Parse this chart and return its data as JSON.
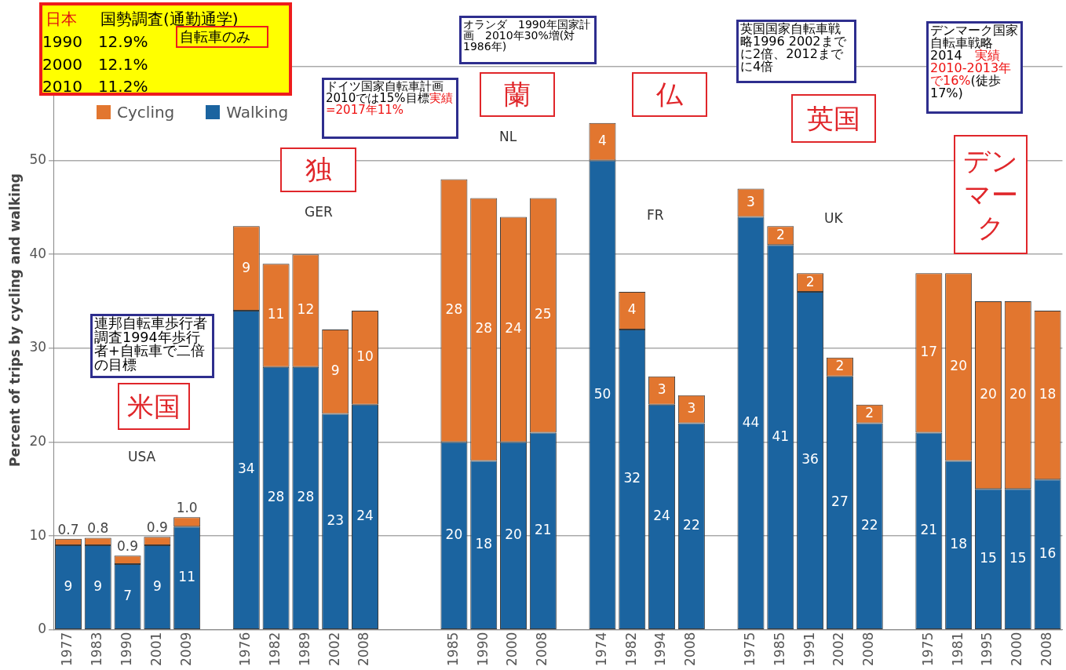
{
  "chart_data": {
    "type": "bar",
    "stacked": true,
    "ylabel": "Percent of trips by cycling and walking",
    "categories": [
      "1977",
      "1983",
      "1990",
      "2001",
      "2009",
      null,
      "1976",
      "1982",
      "1989",
      "2002",
      "2008",
      null,
      null,
      "1985",
      "1990",
      "2000",
      "2008",
      null,
      "1974",
      "1982",
      "1994",
      "2008",
      null,
      "1975",
      "1985",
      "1991",
      "2002",
      "2008",
      null,
      "1975",
      "1981",
      "1995",
      "2000",
      "2008"
    ],
    "series": [
      {
        "name": "Walking",
        "color": "#1b64a0",
        "values": [
          9,
          9,
          7,
          9,
          11,
          null,
          34,
          28,
          28,
          23,
          24,
          null,
          null,
          20,
          18,
          20,
          21,
          null,
          50,
          32,
          24,
          22,
          null,
          44,
          41,
          36,
          27,
          22,
          null,
          21,
          18,
          15,
          15,
          16
        ],
        "value_labels": [
          "9",
          "9",
          "7",
          "9",
          "11",
          null,
          "34",
          "28",
          "28",
          "23",
          "24",
          null,
          null,
          "20",
          "18",
          "20",
          "21",
          null,
          "50",
          "32",
          "24",
          "22",
          null,
          "44",
          "41",
          "36",
          "27",
          "22",
          null,
          "21",
          "18",
          "15",
          "15",
          "16"
        ]
      },
      {
        "name": "Cycling",
        "color": "#e2762f",
        "values": [
          0.7,
          0.8,
          0.9,
          0.9,
          1.0,
          null,
          9,
          11,
          12,
          9,
          10,
          null,
          null,
          28,
          28,
          24,
          25,
          null,
          4,
          4,
          3,
          3,
          null,
          3,
          2,
          2,
          2,
          2,
          null,
          17,
          20,
          20,
          20,
          18
        ],
        "value_labels": [
          "0.7",
          "0.8",
          "0.9",
          "0.9",
          "1.0",
          null,
          "9",
          "11",
          "12",
          "9",
          "10",
          null,
          null,
          "28",
          "28",
          "24",
          "25",
          null,
          "4",
          "4",
          "3",
          "3",
          null,
          "3",
          "2",
          "2",
          "2",
          "2",
          null,
          "17",
          "20",
          "20",
          "20",
          "18"
        ]
      }
    ],
    "ylim": [
      0,
      66
    ],
    "yticks": [
      0,
      10,
      20,
      30,
      40,
      50,
      {
        "value": 60,
        "label": null
      }
    ],
    "grid": "y",
    "legend": "top left",
    "annotations": [
      "日本",
      "国勢調査(通勤通学)",
      "自転車のみ",
      "1990　12.9%",
      "2000　12.1%",
      "2010　11.2%",
      "連邦自転車歩行者調査1994年歩行者+自転車で二倍の目標",
      "ドイツ国家自転車計画2010では15%目標",
      "実績=2017年11%",
      "オランダ　1990年国家計画　2010年30%増(対1986年)",
      "英国国家自転車戦略1996 2002までに2倍、2012までに4倍",
      "デンマーク国家自転車戦略2014　",
      "実績2010-2013年で16%",
      "(徒歩17%)",
      "米国",
      "独",
      "蘭",
      "仏",
      "英国",
      "デンマーク",
      "USA",
      "GER",
      "NL",
      "FR",
      "UK"
    ]
  }
}
